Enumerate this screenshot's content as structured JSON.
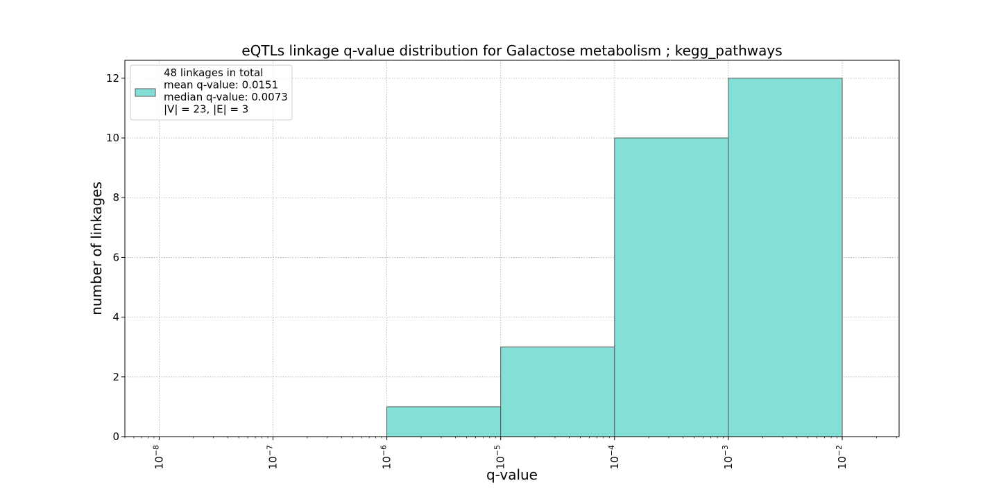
{
  "chart_data": {
    "type": "bar",
    "subtype": "histogram",
    "title": "eQTLs linkage q-value distribution for Galactose metabolism ; kegg_pathways",
    "xlabel": "q-value",
    "ylabel": "number of linkages",
    "xscale": "log",
    "xlim": [
      5e-09,
      0.0316
    ],
    "ylim": [
      0,
      12.6
    ],
    "grid": true,
    "x_ticks": [
      {
        "value": 1e-08,
        "base": "10",
        "exp": "−8"
      },
      {
        "value": 1e-07,
        "base": "10",
        "exp": "−7"
      },
      {
        "value": 1e-06,
        "base": "10",
        "exp": "−6"
      },
      {
        "value": 1e-05,
        "base": "10",
        "exp": "−5"
      },
      {
        "value": 0.0001,
        "base": "10",
        "exp": "−4"
      },
      {
        "value": 0.001,
        "base": "10",
        "exp": "−3"
      },
      {
        "value": 0.01,
        "base": "10",
        "exp": "−2"
      }
    ],
    "y_ticks": [
      {
        "value": 0,
        "label": "0"
      },
      {
        "value": 2,
        "label": "2"
      },
      {
        "value": 4,
        "label": "4"
      },
      {
        "value": 6,
        "label": "6"
      },
      {
        "value": 8,
        "label": "8"
      },
      {
        "value": 10,
        "label": "10"
      },
      {
        "value": 12,
        "label": "12"
      }
    ],
    "bins": [
      {
        "start": 1e-08,
        "end": 1e-07,
        "count": 0
      },
      {
        "start": 1e-07,
        "end": 1e-06,
        "count": 0
      },
      {
        "start": 1e-06,
        "end": 1e-05,
        "count": 1
      },
      {
        "start": 1e-05,
        "end": 0.0001,
        "count": 3
      },
      {
        "start": 0.0001,
        "end": 0.001,
        "count": 10
      },
      {
        "start": 0.001,
        "end": 0.01,
        "count": 12
      }
    ],
    "bar_color": "#84e0d6",
    "edge_color": "#555555",
    "legend": {
      "placement": "top-left",
      "lines": [
        "48 linkages in total",
        "mean q-value: 0.0151",
        "median q-value: 0.0073",
        "|V| = 23, |E| = 3"
      ]
    }
  }
}
